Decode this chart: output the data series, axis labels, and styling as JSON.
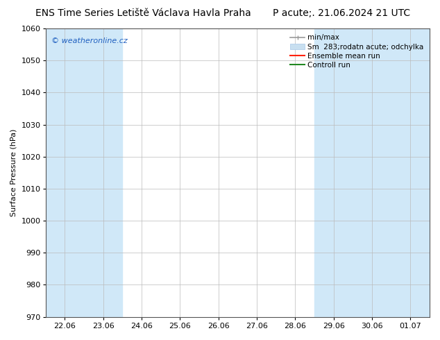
{
  "title": "ENS Time Series Letiště Václava Havla Praha",
  "title2": "P acute;. 21.06.2024 21 UTC",
  "ylabel": "Surface Pressure (hPa)",
  "ylim": [
    970,
    1060
  ],
  "yticks": [
    970,
    980,
    990,
    1000,
    1010,
    1020,
    1030,
    1040,
    1050,
    1060
  ],
  "xtick_labels": [
    "22.06",
    "23.06",
    "24.06",
    "25.06",
    "26.06",
    "27.06",
    "28.06",
    "29.06",
    "30.06",
    "01.07"
  ],
  "date_start": "2024-06-22",
  "date_end": "2024-07-01",
  "shaded_ranges": [
    {
      "start": "2024-06-22",
      "end": "2024-06-24"
    },
    {
      "start": "2024-06-29",
      "end": "2024-07-02"
    }
  ],
  "watermark": "© weatheronline.cz",
  "watermark_color": "#2060c0",
  "bg_color": "#ffffff",
  "plot_bg_color": "#ffffff",
  "grid_color": "#bbbbbb",
  "shade_color": "#d0e8f8",
  "legend_entries": [
    {
      "label": "min/max",
      "color": "#aaaaaa",
      "type": "errbar"
    },
    {
      "label": "Sm  283;rodatn acute; odchylka",
      "color": "#c0d8ee",
      "type": "fill"
    },
    {
      "label": "Ensemble mean run",
      "color": "#ff0000",
      "type": "line"
    },
    {
      "label": "Controll run",
      "color": "#228822",
      "type": "line"
    }
  ],
  "title_fontsize": 10,
  "axis_fontsize": 8,
  "tick_fontsize": 8,
  "legend_fontsize": 7.5
}
